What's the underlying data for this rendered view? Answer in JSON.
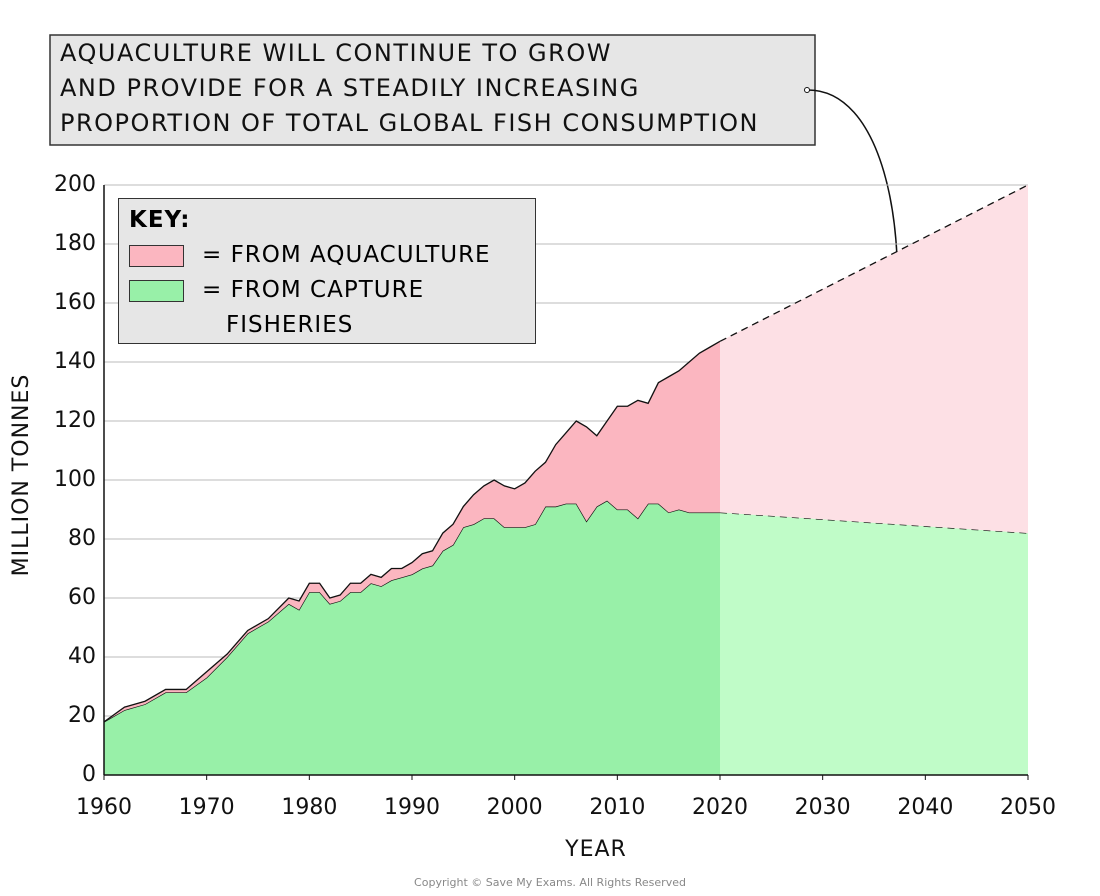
{
  "chart_data": {
    "type": "stacked-area",
    "annotation": [
      "AQUACULTURE WILL  CONTINUE TO GROW",
      "AND PROVIDE  FOR A STEADILY INCREASING",
      "PROPORTION OF  TOTAL GLOBAL FISH CONSUMPTION"
    ],
    "legend_title": "KEY:",
    "x_label": "YEAR",
    "y_label": "MILLION TONNES",
    "copyright": "Copyright © Save My Exams. All Rights Reserved",
    "x": [
      1960,
      1962,
      1964,
      1966,
      1968,
      1970,
      1972,
      1974,
      1976,
      1978,
      1979,
      1980,
      1981,
      1982,
      1983,
      1984,
      1985,
      1986,
      1987,
      1988,
      1989,
      1990,
      1991,
      1992,
      1993,
      1994,
      1995,
      1996,
      1997,
      1998,
      1999,
      2000,
      2001,
      2002,
      2003,
      2004,
      2005,
      2006,
      2007,
      2008,
      2009,
      2010,
      2011,
      2012,
      2013,
      2014,
      2015,
      2016,
      2017,
      2018,
      2019,
      2020
    ],
    "series": [
      {
        "name": "= FROM CAPTURE FISHERIES",
        "color": "#98f0a8",
        "values": [
          18,
          22,
          24,
          28,
          28,
          33,
          40,
          48,
          52,
          58,
          56,
          62,
          62,
          58,
          59,
          62,
          62,
          65,
          64,
          66,
          67,
          68,
          70,
          71,
          76,
          78,
          84,
          85,
          87,
          87,
          84,
          84,
          84,
          85,
          91,
          91,
          92,
          92,
          86,
          91,
          93,
          90,
          90,
          87,
          92,
          92,
          89,
          90,
          89,
          89,
          89,
          89
        ]
      },
      {
        "name": "= FROM AQUACULTURE",
        "color": "#fbb6c0",
        "values": [
          0,
          1,
          1,
          1,
          1,
          2,
          1,
          1,
          1,
          2,
          3,
          3,
          3,
          2,
          2,
          3,
          3,
          3,
          3,
          4,
          3,
          4,
          5,
          5,
          6,
          7,
          7,
          10,
          11,
          13,
          14,
          13,
          15,
          18,
          15,
          21,
          24,
          28,
          32,
          24,
          27,
          35,
          35,
          40,
          34,
          41,
          46,
          47,
          51,
          54,
          56,
          58
        ]
      }
    ],
    "projection": {
      "x": [
        2020,
        2050
      ],
      "series": [
        {
          "color": "#c0fcc8",
          "values": [
            89,
            82
          ]
        },
        {
          "color": "#fde0e5",
          "values": [
            58,
            118
          ]
        }
      ]
    },
    "xlim": [
      1960,
      2050
    ],
    "xticks": [
      1960,
      1970,
      1980,
      1990,
      2000,
      2010,
      2020,
      2030,
      2040,
      2050
    ],
    "ylim": [
      0,
      200
    ],
    "yticks": [
      0,
      20,
      40,
      60,
      80,
      100,
      120,
      140,
      160,
      180,
      200
    ],
    "grid": true
  }
}
